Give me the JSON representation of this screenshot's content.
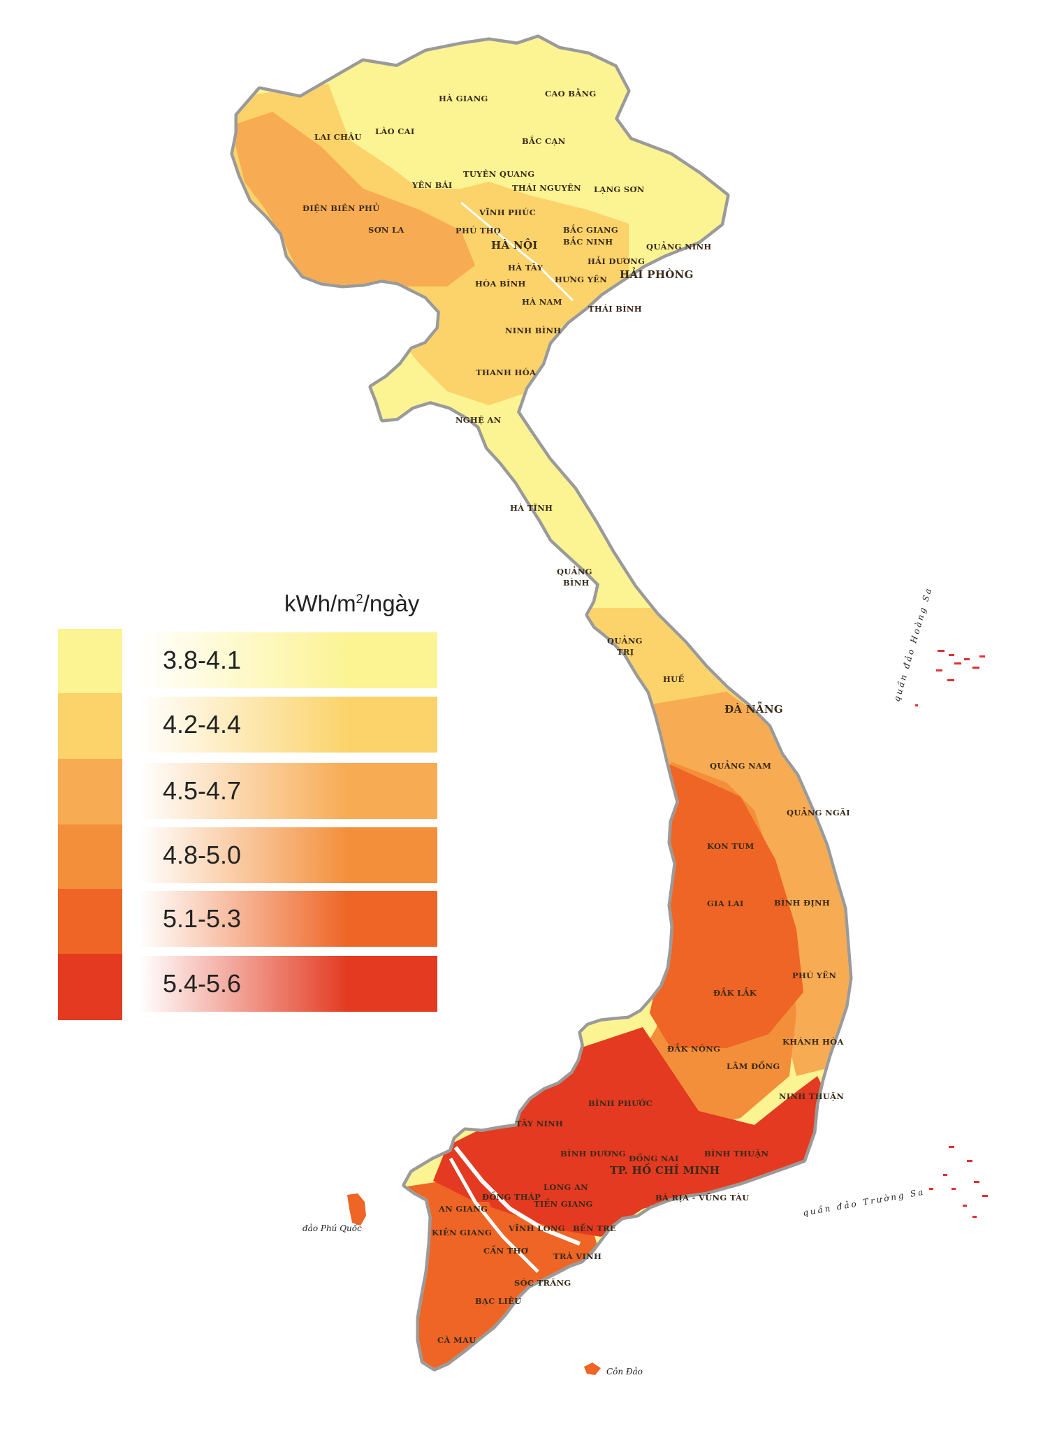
{
  "legend": {
    "unit_main": "kWh/m",
    "unit_sup": "2",
    "unit_tail": "/ngày",
    "classes": [
      {
        "label": "3.8-4.1",
        "color": "#fcf393"
      },
      {
        "label": "4.2-4.4",
        "color": "#fbd36a"
      },
      {
        "label": "4.5-4.7",
        "color": "#f7ab53"
      },
      {
        "label": "4.8-5.0",
        "color": "#f38f3b"
      },
      {
        "label": "5.1-5.3",
        "color": "#ee6525"
      },
      {
        "label": "5.4-5.6",
        "color": "#e33a21"
      }
    ]
  },
  "provinces": {
    "ha_giang": "HÀ GIANG",
    "cao_bang": "CAO BẰNG",
    "lai_chau": "LAI CHÂU",
    "lao_cai": "LÀO CAI",
    "bac_can": "BẮC CẠN",
    "tuyen_quang": "TUYÊN QUANG",
    "yen_bai": "YÊN BÁI",
    "thai_nguyen": "THÁI NGUYÊN",
    "lang_son": "LẠNG SƠN",
    "dien_bien_phu": "ĐIỆN BIÊN PHỦ",
    "vinh_phuc": "VĨNH PHÚC",
    "son_la": "SƠN LA",
    "phu_tho": "PHÚ THỌ",
    "bac_giang": "BẮC GIANG",
    "ha_noi": "HÀ NỘI",
    "bac_ninh": "BẮC NINH",
    "quang_ninh": "QUẢNG NINH",
    "ha_tay": "HÀ TÂY",
    "hai_duong": "HẢI DƯƠNG",
    "hai_phong": "HẢI PHÒNG",
    "hoa_binh": "HÒA BÌNH",
    "hung_yen": "HƯNG YÊN",
    "ha_nam": "HÀ NAM",
    "thai_binh": "THÁI BÌNH",
    "ninh_binh": "NINH BÌNH",
    "thanh_hoa": "THANH HÓA",
    "nghe_an": "NGHỆ AN",
    "ha_tinh": "HÀ TĨNH",
    "quang_binh_1": "QUẢNG",
    "quang_binh_2": "BÌNH",
    "quang_tri_1": "QUẢNG",
    "quang_tri_2": "TRỊ",
    "hue": "HUẾ",
    "da_nang": "ĐÀ NẴNG",
    "quang_nam": "QUẢNG NAM",
    "quang_ngai": "QUẢNG NGÃI",
    "kon_tum": "KON TUM",
    "gia_lai": "GIA LAI",
    "binh_dinh": "BÌNH ĐỊNH",
    "phu_yen": "PHÚ YÊN",
    "dak_lak": "ĐẮK LẮK",
    "khanh_hoa": "KHÁNH HÒA",
    "dak_nong": "ĐẮK NÔNG",
    "lam_dong": "LÂM ĐỒNG",
    "ninh_thuan": "NINH THUẬN",
    "binh_phuoc": "BÌNH PHƯỚC",
    "tay_ninh": "TÂY NINH",
    "binh_duong": "BÌNH DƯƠNG",
    "dong_nai": "ĐỒNG NAI",
    "binh_thuan": "BÌNH THUẬN",
    "tp_hcm": "TP. HỒ CHÍ MINH",
    "long_an": "LONG AN",
    "dong_thap": "ĐỒNG THÁP",
    "an_giang": "AN GIANG",
    "tien_giang": "TIỀN GIANG",
    "ba_ria": "BÀ RỊA - VŨNG TÀU",
    "kien_giang": "KIÊN GIANG",
    "vinh_long": "VĨNH LONG",
    "ben_tre": "BẾN TRE",
    "can_tho": "CẦN THƠ",
    "tra_vinh": "TRÀ VINH",
    "soc_trang": "SÓC TRĂNG",
    "bac_lieu": "BẠC LIÊU",
    "ca_mau": "CÀ MAU"
  },
  "islands": {
    "phu_quoc": "đảo Phú Quốc",
    "con_dao": "Côn Đảo",
    "hoang_sa": "quần đảo Hoàng Sa",
    "truong_sa": "quần đảo Trường Sa"
  }
}
